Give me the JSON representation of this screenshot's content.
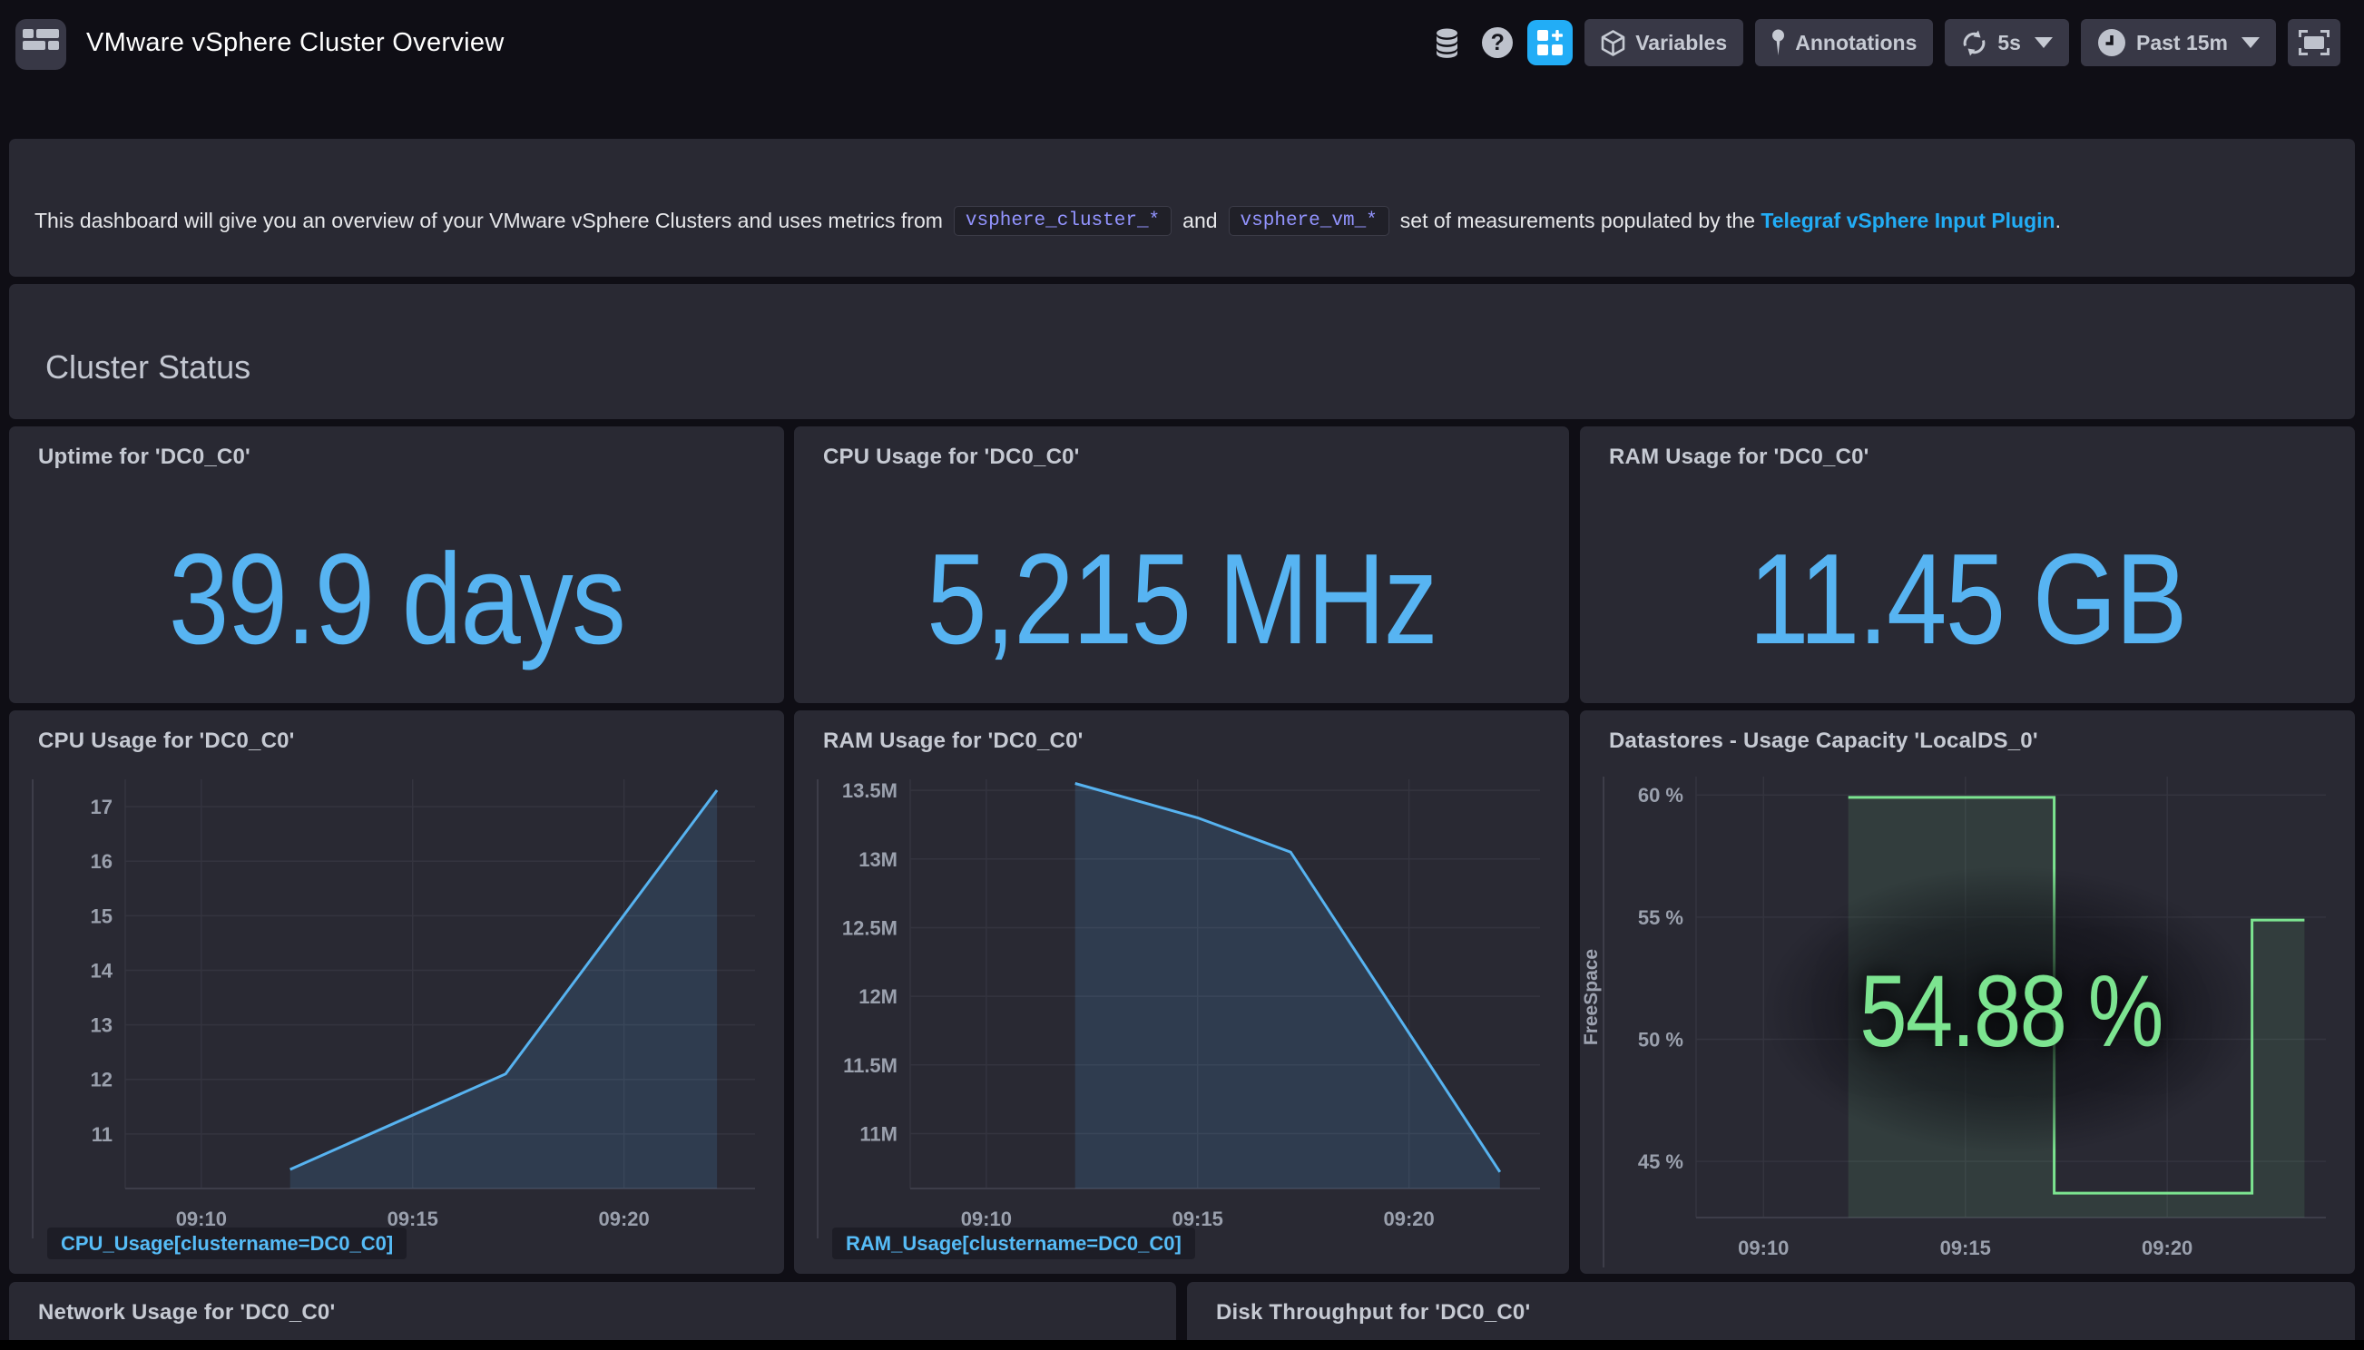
{
  "navbar": {
    "title": "VMware vSphere Cluster Overview",
    "variables_label": "Variables",
    "annotations_label": "Annotations",
    "refresh_label": "5s",
    "time_label": "Past 15m",
    "help_label": "?",
    "accent_color": "#22ADF6"
  },
  "note": {
    "text_before": "This dashboard will give you an overview of your VMware vSphere Clusters and uses metrics from",
    "code1": "vsphere_cluster_*",
    "text_and": "and",
    "code2": "vsphere_vm_*",
    "text_after": "set of measurements populated by the",
    "link": "Telegraf vSphere Input Plugin",
    "period": "."
  },
  "row_title": "Cluster Status",
  "stats": [
    {
      "title": "Uptime for 'DC0_C0'",
      "value": "39.9 days"
    },
    {
      "title": "CPU Usage for 'DC0_C0'",
      "value": "5,215 MHz"
    },
    {
      "title": "RAM Usage for 'DC0_C0'",
      "value": "11.45 GB"
    }
  ],
  "bottom_panels": [
    {
      "title": "Network Usage for 'DC0_C0'"
    },
    {
      "title": "Disk Throughput for 'DC0_C0'"
    }
  ],
  "chart_data": [
    {
      "type": "area",
      "title": "CPU Usage for 'DC0_C0'",
      "legend": "CPU_Usage[clustername=DC0_C0]",
      "line_color": "#57B3F0",
      "fill_color": "rgba(86,177,241,0.15)",
      "x_domain": [
        548.2,
        563.1
      ],
      "x_ticks": [
        {
          "label": "09:10",
          "v": 550
        },
        {
          "label": "09:15",
          "v": 555
        },
        {
          "label": "09:20",
          "v": 560
        }
      ],
      "y_domain": [
        10.0,
        17.5
      ],
      "y_ticks": [
        {
          "label": "11",
          "v": 11
        },
        {
          "label": "12",
          "v": 12
        },
        {
          "label": "13",
          "v": 13
        },
        {
          "label": "14",
          "v": 14
        },
        {
          "label": "15",
          "v": 15
        },
        {
          "label": "16",
          "v": 16
        },
        {
          "label": "17",
          "v": 17
        }
      ],
      "points": [
        [
          552.1,
          10.35
        ],
        [
          557.2,
          12.1
        ],
        [
          562.2,
          17.3
        ]
      ]
    },
    {
      "type": "area",
      "title": "RAM Usage for 'DC0_C0'",
      "legend": "RAM_Usage[clustername=DC0_C0]",
      "line_color": "#57B3F0",
      "fill_color": "rgba(86,177,241,0.15)",
      "x_domain": [
        548.2,
        563.1
      ],
      "x_ticks": [
        {
          "label": "09:10",
          "v": 550
        },
        {
          "label": "09:15",
          "v": 555
        },
        {
          "label": "09:20",
          "v": 560
        }
      ],
      "y_domain": [
        10.6,
        13.58
      ],
      "y_ticks": [
        {
          "label": "11M",
          "v": 11
        },
        {
          "label": "11.5M",
          "v": 11.5
        },
        {
          "label": "12M",
          "v": 12
        },
        {
          "label": "12.5M",
          "v": 12.5
        },
        {
          "label": "13M",
          "v": 13
        },
        {
          "label": "13.5M",
          "v": 13.5
        }
      ],
      "points": [
        [
          552.1,
          13.55
        ],
        [
          555.0,
          13.3
        ],
        [
          557.2,
          13.05
        ],
        [
          562.15,
          10.72
        ]
      ]
    },
    {
      "type": "step-area",
      "title": "Datastores - Usage Capacity 'LocalDS_0'",
      "legend": null,
      "y_axis_label": "FreeSpace",
      "overlay_value": "54.88 %",
      "line_color": "#7CE490",
      "fill_color": "rgba(124,228,144,0.11)",
      "x_domain": [
        548.33,
        563.93
      ],
      "x_ticks": [
        {
          "label": "09:10",
          "v": 550
        },
        {
          "label": "09:15",
          "v": 555
        },
        {
          "label": "09:20",
          "v": 560
        }
      ],
      "y_domain": [
        42.7,
        60.75
      ],
      "y_ticks": [
        {
          "label": "45 %",
          "v": 45
        },
        {
          "label": "50 %",
          "v": 50
        },
        {
          "label": "55 %",
          "v": 55
        },
        {
          "label": "60 %",
          "v": 60
        }
      ],
      "points": [
        [
          552.1,
          59.9
        ],
        [
          557.2,
          59.9
        ],
        [
          557.2,
          43.7
        ],
        [
          562.1,
          43.7
        ],
        [
          562.1,
          54.88
        ],
        [
          563.4,
          54.88
        ]
      ]
    }
  ]
}
